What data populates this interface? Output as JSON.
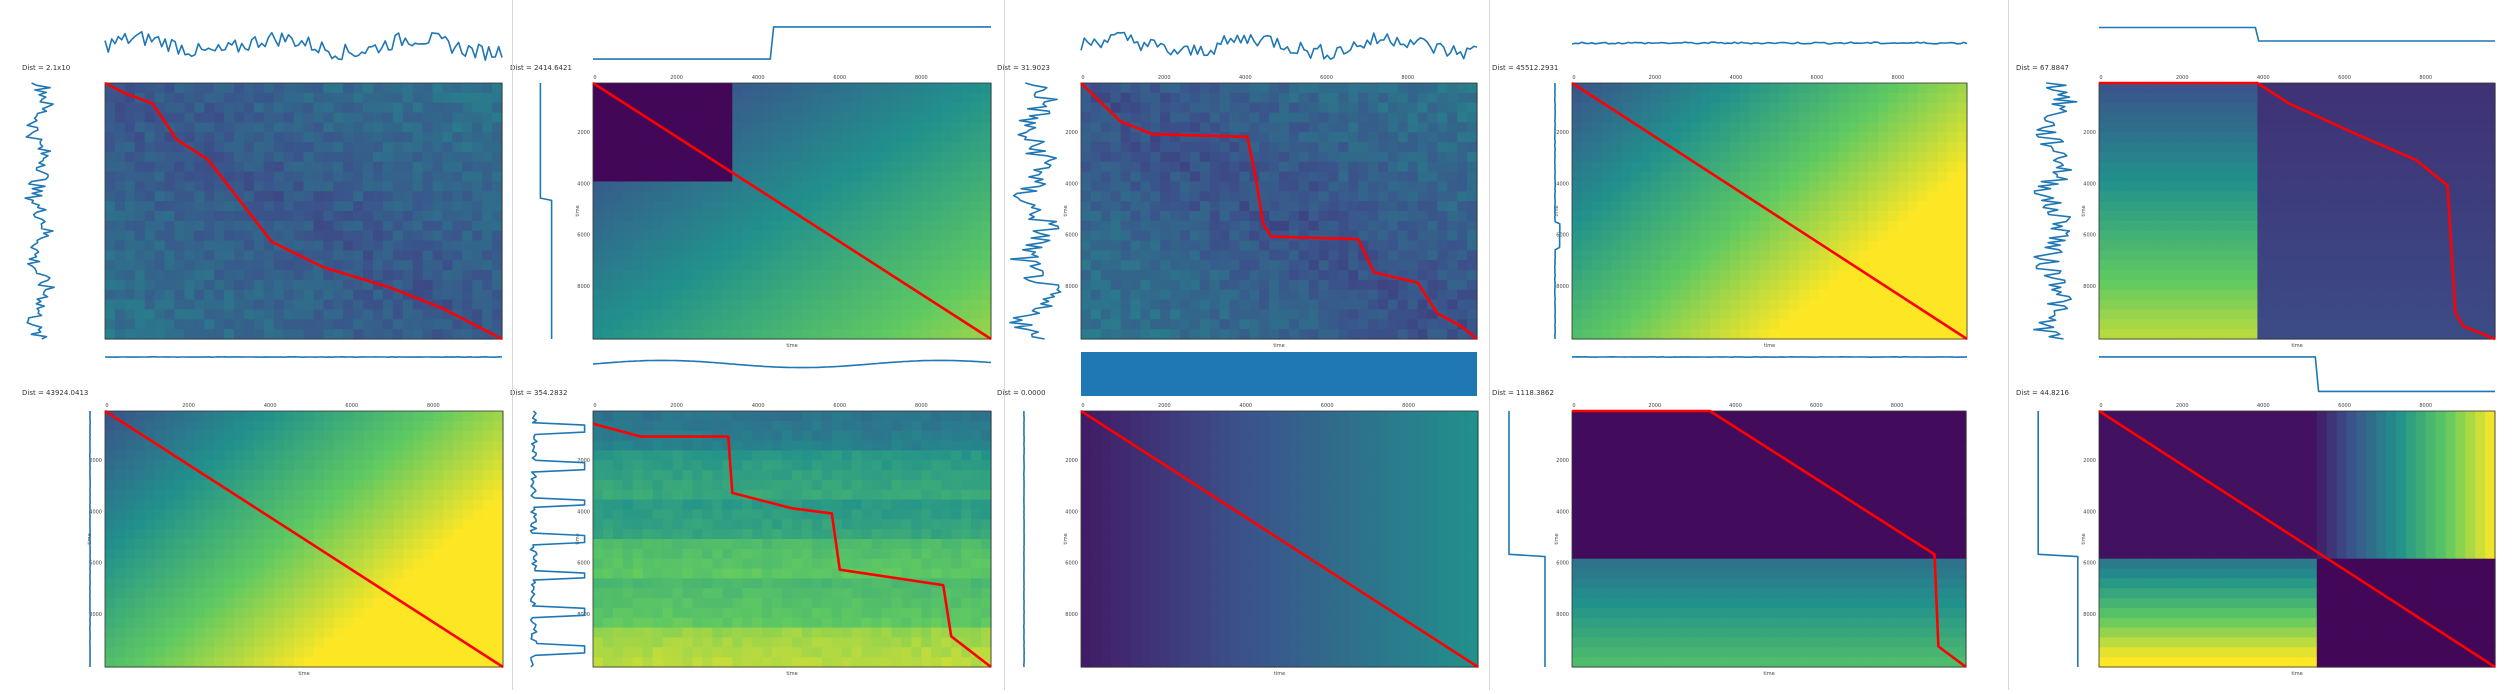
{
  "figure": {
    "panel_count": 10,
    "dtw_path_color": "#ff0000",
    "series_color": "#1f77b4",
    "colormap": [
      "#440154",
      "#3b528b",
      "#21918c",
      "#5ec962",
      "#fde725"
    ]
  },
  "chart_data": [
    {
      "type": "heatmap",
      "panel": "r1c1",
      "title": "Dist = 2.1x10",
      "matrix_pattern": "noisy",
      "dtw_path": [
        [
          0,
          0
        ],
        [
          0.05,
          0.04
        ],
        [
          0.12,
          0.08
        ],
        [
          0.18,
          0.22
        ],
        [
          0.26,
          0.3
        ],
        [
          0.32,
          0.42
        ],
        [
          0.42,
          0.62
        ],
        [
          0.55,
          0.72
        ],
        [
          0.72,
          0.8
        ],
        [
          0.85,
          0.88
        ],
        [
          1,
          1
        ]
      ],
      "top_series": "noisy_steps",
      "left_series": "noisy",
      "bottom_series": "flat"
    },
    {
      "type": "heatmap",
      "panel": "r1c2",
      "title": "Dist = 2414.6421",
      "ylabel": "time",
      "xlabel": "time",
      "xticks": [
        "0",
        "2000",
        "4000",
        "6000",
        "8000"
      ],
      "yticks": [
        "2000",
        "4000",
        "6000",
        "8000"
      ],
      "matrix_pattern": "step_gradient",
      "dtw_path": [
        [
          0,
          0
        ],
        [
          1,
          1
        ]
      ],
      "top_series": "single_step",
      "left_series": "single_step",
      "bottom_series": "wavy"
    },
    {
      "type": "heatmap",
      "panel": "r1c3",
      "title": "Dist = 31.9023",
      "ylabel": "time",
      "xlabel": "time",
      "xticks": [
        "0",
        "2000",
        "4000",
        "6000",
        "8000"
      ],
      "yticks": [
        "2000",
        "4000",
        "6000",
        "8000"
      ],
      "matrix_pattern": "noisy_dark",
      "dtw_path": [
        [
          0,
          0
        ],
        [
          0.1,
          0.15
        ],
        [
          0.18,
          0.2
        ],
        [
          0.42,
          0.21
        ],
        [
          0.44,
          0.36
        ],
        [
          0.46,
          0.55
        ],
        [
          0.48,
          0.6
        ],
        [
          0.7,
          0.61
        ],
        [
          0.74,
          0.74
        ],
        [
          0.85,
          0.78
        ],
        [
          0.9,
          0.9
        ],
        [
          0.96,
          0.95
        ],
        [
          1,
          1
        ]
      ],
      "top_series": "noisy_steps",
      "left_series": "noisy",
      "bottom_series": "band"
    },
    {
      "type": "heatmap",
      "panel": "r1c4",
      "title": "Dist = 45512.2931",
      "ylabel": "time",
      "xlabel": "time",
      "xticks": [
        "0",
        "2000",
        "4000",
        "6000",
        "8000"
      ],
      "yticks": [
        "2000",
        "4000",
        "6000",
        "8000"
      ],
      "matrix_pattern": "gradient_bright",
      "dtw_path": [
        [
          0,
          0
        ],
        [
          1,
          1
        ]
      ],
      "top_series": "flat",
      "left_series": "flat_bump",
      "bottom_series": "flat"
    },
    {
      "type": "heatmap",
      "panel": "r1c5",
      "title": "Dist = 67.8847",
      "ylabel": "time",
      "xlabel": "time",
      "xticks": [
        "0",
        "2000",
        "4000",
        "6000",
        "8000"
      ],
      "yticks": [
        "2000",
        "4000",
        "6000",
        "8000"
      ],
      "matrix_pattern": "split_vertical",
      "dtw_path": [
        [
          0,
          0
        ],
        [
          0.4,
          0
        ],
        [
          0.48,
          0.08
        ],
        [
          0.65,
          0.2
        ],
        [
          0.8,
          0.3
        ],
        [
          0.88,
          0.4
        ],
        [
          0.9,
          0.9
        ],
        [
          0.92,
          0.95
        ],
        [
          1,
          1
        ]
      ],
      "top_series": "step_down",
      "left_series": "noisy",
      "bottom_series": "step_down_late"
    },
    {
      "type": "heatmap",
      "panel": "r2c1",
      "title": "Dist = 43924.0413",
      "ylabel": "time",
      "xlabel": "time",
      "xticks": [
        "0",
        "2000",
        "4000",
        "6000",
        "8000"
      ],
      "yticks": [
        "2000",
        "4000",
        "6000",
        "8000"
      ],
      "matrix_pattern": "gradient_bright",
      "dtw_path": [
        [
          0,
          0
        ],
        [
          1,
          1
        ]
      ],
      "top_series": "none",
      "left_series": "flat",
      "bottom_series": "none"
    },
    {
      "type": "heatmap",
      "panel": "r2c2",
      "title": "Dist = 354.2832",
      "ylabel": "time",
      "xlabel": "time",
      "xticks": [
        "0",
        "2000",
        "4000",
        "6000",
        "8000"
      ],
      "yticks": [
        "2000",
        "4000",
        "6000",
        "8000"
      ],
      "matrix_pattern": "banded",
      "dtw_path": [
        [
          0,
          0.05
        ],
        [
          0.12,
          0.1
        ],
        [
          0.34,
          0.1
        ],
        [
          0.35,
          0.32
        ],
        [
          0.5,
          0.38
        ],
        [
          0.6,
          0.4
        ],
        [
          0.62,
          0.62
        ],
        [
          0.88,
          0.68
        ],
        [
          0.9,
          0.88
        ],
        [
          1,
          1
        ]
      ],
      "top_series": "none",
      "left_series": "spiky",
      "bottom_series": "none"
    },
    {
      "type": "heatmap",
      "panel": "r2c3",
      "title": "Dist = 0.0000",
      "ylabel": "time",
      "xlabel": "time",
      "xticks": [
        "0",
        "2000",
        "4000",
        "6000",
        "8000"
      ],
      "yticks": [
        "2000",
        "4000",
        "6000",
        "8000"
      ],
      "matrix_pattern": "horizontal_gradient",
      "dtw_path": [
        [
          0,
          0
        ],
        [
          1,
          1
        ]
      ],
      "top_series": "none",
      "left_series": "flat",
      "bottom_series": "none"
    },
    {
      "type": "heatmap",
      "panel": "r2c4",
      "title": "Dist = 1118.3862",
      "ylabel": "time",
      "xlabel": "time",
      "xticks": [
        "0",
        "2000",
        "4000",
        "6000",
        "8000"
      ],
      "yticks": [
        "2000",
        "4000",
        "6000",
        "8000"
      ],
      "matrix_pattern": "split_horizontal",
      "dtw_path": [
        [
          0,
          0
        ],
        [
          0.35,
          0
        ],
        [
          0.92,
          0.56
        ],
        [
          0.93,
          0.92
        ],
        [
          1,
          1
        ]
      ],
      "top_series": "none",
      "left_series": "step_right",
      "bottom_series": "none"
    },
    {
      "type": "heatmap",
      "panel": "r2c5",
      "title": "Dist = 44.8216",
      "ylabel": "time",
      "xlabel": "time",
      "xticks": [
        "0",
        "2000",
        "4000",
        "6000",
        "8000"
      ],
      "yticks": [
        "2000",
        "4000",
        "6000",
        "8000"
      ],
      "matrix_pattern": "quadrants",
      "dtw_path": [
        [
          0,
          0
        ],
        [
          1,
          1
        ]
      ],
      "top_series": "none",
      "left_series": "step_right",
      "bottom_series": "none"
    }
  ]
}
